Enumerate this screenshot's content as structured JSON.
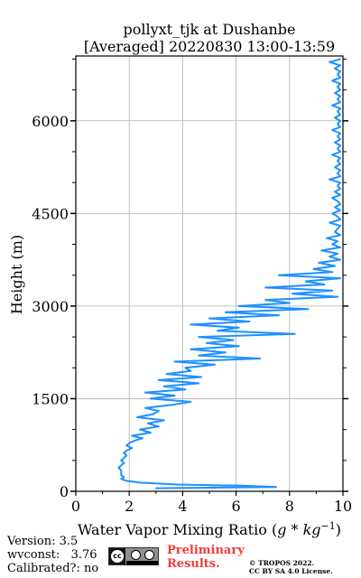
{
  "chart_data": {
    "type": "line",
    "title": "pollyxt_tjk at Dushanbe",
    "subtitle": "[Averaged] 20220830 13:00-13:59",
    "xlabel": "Water Vapor Mixing Ratio (g*kg⁻¹)",
    "ylabel": "Height (m)",
    "xlim": [
      0,
      10
    ],
    "ylim": [
      0,
      7050
    ],
    "xticks": [
      "0",
      "2",
      "4",
      "6",
      "8",
      "10"
    ],
    "yticks": [
      "0",
      "1500",
      "3000",
      "4500",
      "6000"
    ],
    "grid": true,
    "series": [
      {
        "color": "#1e90ff",
        "points": [
          [
            3.0,
            50
          ],
          [
            7.5,
            70
          ],
          [
            6.2,
            90
          ],
          [
            3.8,
            110
          ],
          [
            2.4,
            140
          ],
          [
            1.9,
            170
          ],
          [
            1.7,
            200
          ],
          [
            1.8,
            230
          ],
          [
            1.7,
            260
          ],
          [
            1.7,
            300
          ],
          [
            1.7,
            340
          ],
          [
            1.6,
            380
          ],
          [
            1.7,
            420
          ],
          [
            1.8,
            460
          ],
          [
            1.7,
            500
          ],
          [
            1.8,
            540
          ],
          [
            1.9,
            580
          ],
          [
            1.8,
            620
          ],
          [
            1.9,
            660
          ],
          [
            2.1,
            700
          ],
          [
            1.9,
            740
          ],
          [
            2.0,
            780
          ],
          [
            2.2,
            820
          ],
          [
            2.5,
            860
          ],
          [
            2.1,
            900
          ],
          [
            2.8,
            950
          ],
          [
            2.4,
            1000
          ],
          [
            3.1,
            1050
          ],
          [
            2.7,
            1100
          ],
          [
            3.3,
            1150
          ],
          [
            2.3,
            1200
          ],
          [
            2.9,
            1250
          ],
          [
            3.1,
            1300
          ],
          [
            2.6,
            1350
          ],
          [
            3.6,
            1400
          ],
          [
            4.3,
            1450
          ],
          [
            2.8,
            1500
          ],
          [
            3.7,
            1550
          ],
          [
            2.6,
            1600
          ],
          [
            4.1,
            1650
          ],
          [
            3.3,
            1700
          ],
          [
            4.6,
            1750
          ],
          [
            3.1,
            1800
          ],
          [
            4.7,
            1850
          ],
          [
            3.4,
            1900
          ],
          [
            4.3,
            1950
          ],
          [
            4.1,
            2000
          ],
          [
            5.2,
            2050
          ],
          [
            3.7,
            2100
          ],
          [
            6.9,
            2150
          ],
          [
            4.6,
            2200
          ],
          [
            5.6,
            2250
          ],
          [
            4.3,
            2300
          ],
          [
            6.1,
            2350
          ],
          [
            4.9,
            2400
          ],
          [
            5.9,
            2450
          ],
          [
            4.6,
            2500
          ],
          [
            8.2,
            2550
          ],
          [
            5.3,
            2600
          ],
          [
            6.1,
            2650
          ],
          [
            4.3,
            2700
          ],
          [
            6.5,
            2750
          ],
          [
            5.0,
            2800
          ],
          [
            7.6,
            2850
          ],
          [
            5.6,
            2900
          ],
          [
            8.7,
            2950
          ],
          [
            6.1,
            3000
          ],
          [
            8.0,
            3050
          ],
          [
            7.1,
            3100
          ],
          [
            9.8,
            3150
          ],
          [
            8.1,
            3200
          ],
          [
            9.6,
            3250
          ],
          [
            7.1,
            3300
          ],
          [
            9.3,
            3350
          ],
          [
            8.6,
            3400
          ],
          [
            9.9,
            3450
          ],
          [
            7.6,
            3500
          ],
          [
            9.6,
            3550
          ],
          [
            8.9,
            3600
          ],
          [
            9.7,
            3650
          ],
          [
            9.1,
            3700
          ],
          [
            9.9,
            3750
          ],
          [
            9.5,
            3800
          ],
          [
            9.8,
            3850
          ],
          [
            9.2,
            3900
          ],
          [
            9.9,
            3950
          ],
          [
            9.6,
            4000
          ],
          [
            9.8,
            4050
          ],
          [
            9.4,
            4100
          ],
          [
            9.9,
            4150
          ],
          [
            9.7,
            4200
          ],
          [
            9.8,
            4250
          ],
          [
            9.9,
            4300
          ],
          [
            9.5,
            4350
          ],
          [
            9.9,
            4400
          ],
          [
            9.8,
            4450
          ],
          [
            9.6,
            4500
          ],
          [
            9.9,
            4550
          ],
          [
            9.7,
            4600
          ],
          [
            9.9,
            4650
          ],
          [
            9.8,
            4700
          ],
          [
            9.6,
            4750
          ],
          [
            9.9,
            4800
          ],
          [
            9.7,
            4850
          ],
          [
            9.9,
            4900
          ],
          [
            9.8,
            4950
          ],
          [
            9.9,
            5000
          ],
          [
            9.5,
            5050
          ],
          [
            9.9,
            5100
          ],
          [
            9.8,
            5150
          ],
          [
            9.9,
            5200
          ],
          [
            9.7,
            5250
          ],
          [
            9.9,
            5300
          ],
          [
            9.8,
            5350
          ],
          [
            9.9,
            5400
          ],
          [
            9.6,
            5450
          ],
          [
            9.9,
            5500
          ],
          [
            9.8,
            5550
          ],
          [
            9.9,
            5600
          ],
          [
            9.7,
            5650
          ],
          [
            9.9,
            5700
          ],
          [
            9.8,
            5750
          ],
          [
            9.9,
            5800
          ],
          [
            9.6,
            5850
          ],
          [
            9.9,
            5900
          ],
          [
            9.8,
            5950
          ],
          [
            9.9,
            6000
          ],
          [
            9.7,
            6050
          ],
          [
            9.9,
            6100
          ],
          [
            9.8,
            6150
          ],
          [
            9.9,
            6200
          ],
          [
            9.6,
            6250
          ],
          [
            9.9,
            6300
          ],
          [
            9.8,
            6350
          ],
          [
            9.9,
            6400
          ],
          [
            9.7,
            6450
          ],
          [
            9.9,
            6500
          ],
          [
            9.8,
            6550
          ],
          [
            9.9,
            6600
          ],
          [
            9.6,
            6650
          ],
          [
            9.9,
            6700
          ],
          [
            9.8,
            6750
          ],
          [
            9.9,
            6800
          ],
          [
            9.7,
            6850
          ],
          [
            9.9,
            6900
          ],
          [
            9.5,
            6950
          ],
          [
            9.9,
            7000
          ]
        ]
      }
    ]
  },
  "footer": {
    "version": "Version: 3.5",
    "wvconst": "wvconst:   3.76",
    "calibrated": "Calibrated?: no",
    "prelim_line1": "Preliminary",
    "prelim_line2": "Results.",
    "copyright_line1": "© TROPOS 2022.",
    "copyright_line2": "CC BY SA 4.0 License.",
    "license_icon": "cc-by-sa-badge-icon"
  }
}
